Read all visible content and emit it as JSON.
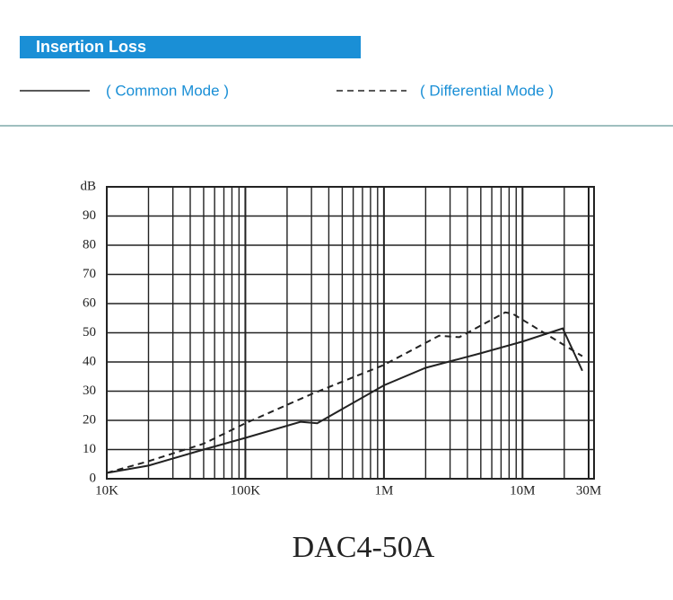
{
  "header": "Insertion Loss",
  "chart_data": {
    "type": "line",
    "title": "DAC4-50A",
    "x_scale": "log",
    "grid": true,
    "xlim": [
      10000,
      30000000
    ],
    "ylim": [
      0,
      100
    ],
    "xticks": [
      {
        "value": 10000,
        "label": "10K"
      },
      {
        "value": 100000,
        "label": "100K"
      },
      {
        "value": 1000000,
        "label": "1M"
      },
      {
        "value": 10000000,
        "label": "10M"
      },
      {
        "value": 30000000,
        "label": "30M"
      }
    ],
    "x_minor_grid": [
      20000,
      30000,
      40000,
      50000,
      60000,
      70000,
      80000,
      90000,
      200000,
      300000,
      400000,
      500000,
      600000,
      700000,
      800000,
      900000,
      2000000,
      3000000,
      4000000,
      5000000,
      6000000,
      7000000,
      8000000,
      9000000,
      20000000
    ],
    "yticks": [
      0,
      10,
      20,
      30,
      40,
      50,
      60,
      70,
      80,
      90,
      {
        "value": 100,
        "label": "dB"
      }
    ],
    "series": [
      {
        "name": "( Common Mode )",
        "color": "#222222",
        "style": "solid",
        "x": [
          10000,
          20000,
          50000,
          100000,
          250000,
          330000,
          1000000,
          2000000,
          5000000,
          10000000,
          19500000,
          27000000
        ],
        "values": [
          2,
          4.5,
          10,
          14,
          19.5,
          19,
          32,
          38,
          43,
          47,
          51.5,
          37
        ]
      },
      {
        "name": "( Differential Mode )",
        "color": "#222222",
        "style": "dashed",
        "x": [
          10000,
          20000,
          50000,
          100000,
          300000,
          1000000,
          2500000,
          3500000,
          7500000,
          8500000,
          27000000
        ],
        "values": [
          2,
          6,
          12,
          19,
          29,
          39,
          49,
          48.5,
          57,
          56.5,
          42
        ]
      }
    ]
  }
}
